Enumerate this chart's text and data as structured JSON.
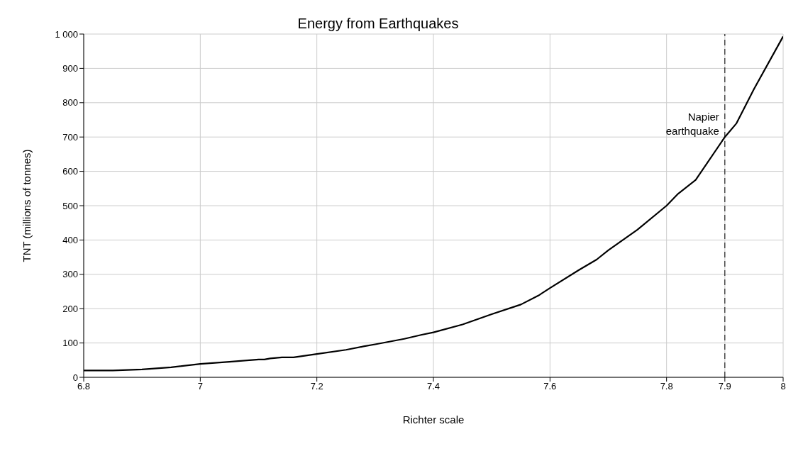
{
  "chart_data": {
    "type": "line",
    "title": "Energy from Earthquakes",
    "xlabel": "Richter scale",
    "ylabel": "TNT (millions of tonnes)",
    "x": [
      6.8,
      6.85,
      6.9,
      6.95,
      7.0,
      7.05,
      7.1,
      7.11,
      7.12,
      7.14,
      7.16,
      7.2,
      7.25,
      7.28,
      7.3,
      7.35,
      7.38,
      7.4,
      7.45,
      7.5,
      7.55,
      7.58,
      7.6,
      7.65,
      7.68,
      7.7,
      7.75,
      7.8,
      7.82,
      7.85,
      7.9,
      7.92,
      7.95,
      8.0
    ],
    "series": [
      {
        "color": "#000000",
        "values": [
          20,
          20,
          23,
          29,
          39,
          45,
          52,
          52,
          55,
          58,
          58,
          68,
          80,
          90,
          96,
          112,
          124,
          131,
          154,
          184,
          212,
          238,
          260,
          313,
          343,
          370,
          430,
          500,
          535,
          575,
          700,
          740,
          840,
          993
        ]
      }
    ],
    "xlim": [
      6.8,
      8
    ],
    "xticks": [
      6.8,
      7,
      7.2,
      7.4,
      7.6,
      7.8,
      7.9,
      8
    ],
    "ylim": [
      0,
      1000
    ],
    "yticks": [
      0,
      100,
      200,
      300,
      400,
      500,
      600,
      700,
      800,
      900,
      {
        "value": 1000,
        "label": "1 000"
      }
    ],
    "grid": true,
    "marker": "none",
    "line_style": "solid",
    "ref_lines": [
      {
        "axis": "x",
        "value": 7.9,
        "label": "Napier earthquake",
        "color": "#000000",
        "line_style": "dashed"
      }
    ]
  }
}
